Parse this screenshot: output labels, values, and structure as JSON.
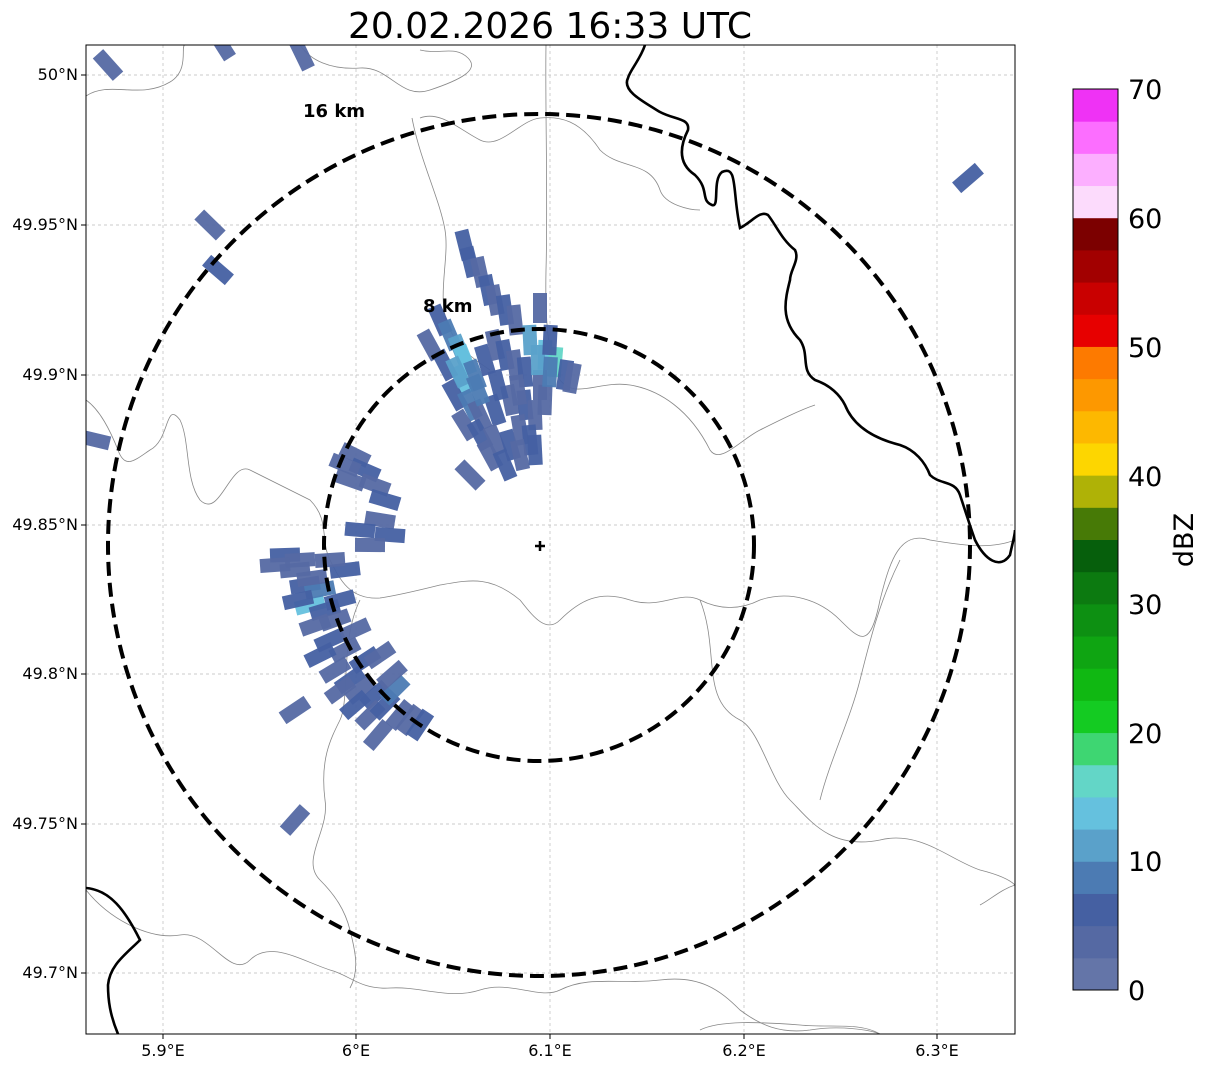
{
  "title": "20.02.2026 16:33 UTC",
  "map": {
    "x_ticks": [
      "5.9°E",
      "6°E",
      "6.1°E",
      "6.2°E",
      "6.3°E"
    ],
    "y_ticks": [
      "50°N",
      "49.95°N",
      "49.9°N",
      "49.85°N",
      "49.8°N",
      "49.75°N",
      "49.7°N"
    ],
    "range_rings": [
      {
        "label": "8 km",
        "radius_km": 8
      },
      {
        "label": "16 km",
        "radius_km": 16
      }
    ],
    "radar_site": {
      "lon": 6.096,
      "lat": 49.843
    }
  },
  "colorbar": {
    "label": "dBZ",
    "ticks": [
      "0",
      "10",
      "20",
      "30",
      "40",
      "50",
      "60",
      "70"
    ],
    "min": 0,
    "max": 70,
    "colors": [
      "#6475a8",
      "#5569a3",
      "#4560a2",
      "#4c7bb3",
      "#5aa1ca",
      "#65c1de",
      "#63d6c7",
      "#3ed672",
      "#14cb22",
      "#10b812",
      "#0fa512",
      "#0d9012",
      "#0c7a10",
      "#065f0c",
      "#477a06",
      "#afb206",
      "#fdd600",
      "#fdb800",
      "#fd9800",
      "#fd7a00",
      "#e70000",
      "#c90000",
      "#a20000",
      "#7c0000",
      "#fcdbfc",
      "#fcafff",
      "#fc6eff",
      "#ef32f5"
    ]
  },
  "chart_data": {
    "type": "heatmap",
    "title": "20.02.2026 16:33 UTC",
    "xlabel": "",
    "ylabel": "",
    "colorbar_label": "dBZ",
    "value_range": [
      0,
      70
    ],
    "xlim": [
      5.86,
      6.34
    ],
    "ylim": [
      49.68,
      50.01
    ],
    "echoes": [
      {
        "region": "north cell",
        "lon_range": [
          6.03,
          6.11
        ],
        "lat_range": [
          49.87,
          49.95
        ],
        "dbz_range": [
          0,
          16
        ]
      },
      {
        "region": "west line",
        "lon_range": [
          5.95,
          6.04
        ],
        "lat_range": [
          49.77,
          49.87
        ],
        "dbz_range": [
          0,
          14
        ]
      },
      {
        "region": "scattered clutter",
        "dbz_range": [
          0,
          14
        ]
      }
    ]
  }
}
